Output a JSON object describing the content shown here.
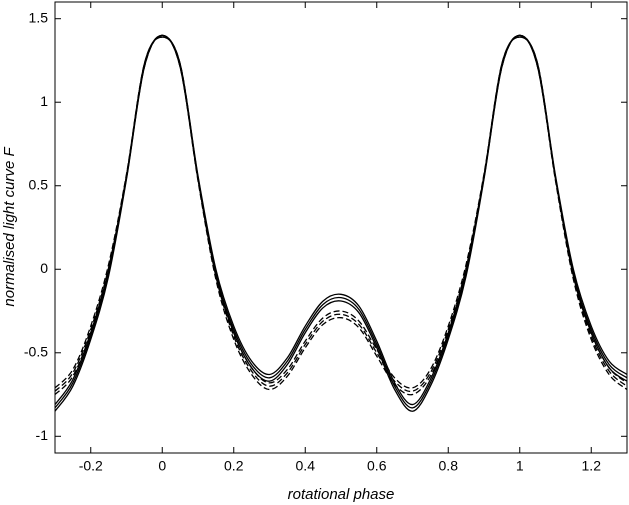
{
  "chart_data": {
    "type": "line",
    "xlabel": "rotational phase",
    "ylabel": "normalised light curve F",
    "x": [
      -0.3,
      -0.25,
      -0.2,
      -0.15,
      -0.1,
      -0.05,
      0,
      0.05,
      0.1,
      0.15,
      0.2,
      0.25,
      0.3,
      0.35,
      0.4,
      0.45,
      0.5,
      0.55,
      0.6,
      0.65,
      0.7,
      0.75,
      0.8,
      0.85,
      0.9,
      0.95,
      1,
      1.05,
      1.1,
      1.15,
      1.2,
      1.25,
      1.3
    ],
    "series": [
      {
        "color": "#000000",
        "linestyle": "solid",
        "values": [
          -0.83,
          -0.68,
          -0.4,
          -0.02,
          0.55,
          1.22,
          1.4,
          1.22,
          0.55,
          -0.02,
          -0.36,
          -0.57,
          -0.65,
          -0.55,
          -0.36,
          -0.21,
          -0.17,
          -0.24,
          -0.45,
          -0.7,
          -0.83,
          -0.68,
          -0.4,
          -0.02,
          0.55,
          1.22,
          1.4,
          1.22,
          0.55,
          -0.02,
          -0.36,
          -0.57,
          -0.65
        ]
      },
      {
        "color": "#000000",
        "linestyle": "solid",
        "values": [
          -0.81,
          -0.66,
          -0.38,
          0.0,
          0.56,
          1.23,
          1.39,
          1.23,
          0.56,
          0.0,
          -0.34,
          -0.55,
          -0.63,
          -0.53,
          -0.34,
          -0.19,
          -0.15,
          -0.22,
          -0.43,
          -0.68,
          -0.81,
          -0.66,
          -0.38,
          0.0,
          0.56,
          1.23,
          1.39,
          1.23,
          0.56,
          0.0,
          -0.34,
          -0.55,
          -0.63
        ]
      },
      {
        "color": "#000000",
        "linestyle": "solid",
        "values": [
          -0.85,
          -0.7,
          -0.42,
          -0.04,
          0.54,
          1.21,
          1.4,
          1.21,
          0.54,
          -0.04,
          -0.38,
          -0.59,
          -0.67,
          -0.57,
          -0.38,
          -0.23,
          -0.19,
          -0.26,
          -0.47,
          -0.72,
          -0.85,
          -0.7,
          -0.42,
          -0.04,
          0.54,
          1.21,
          1.4,
          1.21,
          0.54,
          -0.04,
          -0.38,
          -0.59,
          -0.67
        ]
      },
      {
        "color": "#000000",
        "linestyle": "dashed",
        "values": [
          -0.73,
          -0.62,
          -0.36,
          0.01,
          0.56,
          1.22,
          1.4,
          1.22,
          0.54,
          -0.04,
          -0.4,
          -0.61,
          -0.7,
          -0.62,
          -0.45,
          -0.31,
          -0.27,
          -0.33,
          -0.5,
          -0.67,
          -0.73,
          -0.62,
          -0.36,
          0.01,
          0.56,
          1.22,
          1.4,
          1.22,
          0.54,
          -0.04,
          -0.4,
          -0.61,
          -0.7
        ]
      },
      {
        "color": "#000000",
        "linestyle": "dashed",
        "values": [
          -0.71,
          -0.6,
          -0.34,
          0.03,
          0.57,
          1.23,
          1.39,
          1.23,
          0.55,
          -0.02,
          -0.38,
          -0.59,
          -0.68,
          -0.6,
          -0.43,
          -0.29,
          -0.25,
          -0.31,
          -0.48,
          -0.65,
          -0.71,
          -0.6,
          -0.34,
          0.03,
          0.57,
          1.23,
          1.39,
          1.23,
          0.55,
          -0.02,
          -0.38,
          -0.59,
          -0.68
        ]
      },
      {
        "color": "#000000",
        "linestyle": "dashed",
        "values": [
          -0.75,
          -0.64,
          -0.38,
          -0.01,
          0.55,
          1.21,
          1.4,
          1.21,
          0.53,
          -0.06,
          -0.42,
          -0.63,
          -0.72,
          -0.64,
          -0.47,
          -0.33,
          -0.29,
          -0.35,
          -0.52,
          -0.69,
          -0.75,
          -0.64,
          -0.38,
          -0.01,
          0.55,
          1.21,
          1.4,
          1.21,
          0.53,
          -0.06,
          -0.42,
          -0.63,
          -0.72
        ]
      }
    ],
    "xlim": [
      -0.3,
      1.3
    ],
    "ylim": [
      -1.1,
      1.6
    ],
    "xticks": [
      -0.2,
      0,
      0.2,
      0.4,
      0.6,
      0.8,
      1,
      1.2
    ],
    "yticks": [
      -1,
      -0.5,
      0,
      0.5,
      1,
      1.5
    ],
    "grid": false
  }
}
